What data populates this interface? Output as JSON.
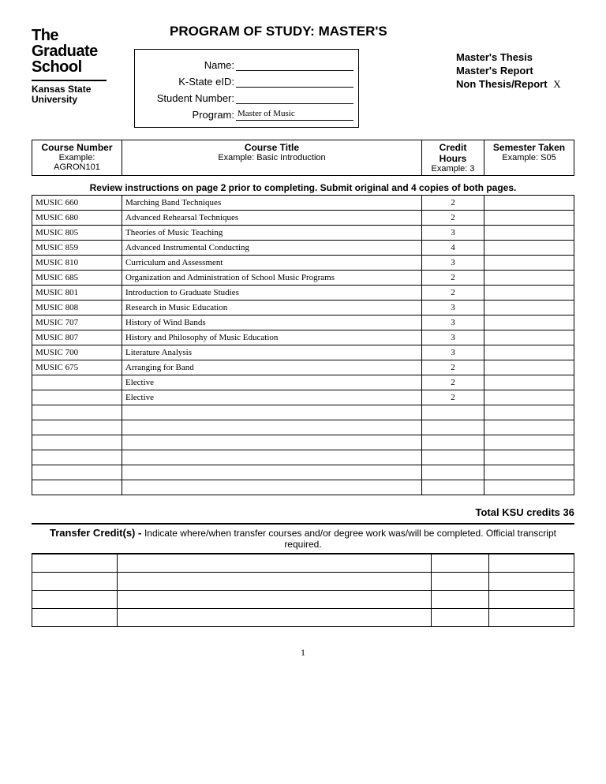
{
  "logo": {
    "line1": "The",
    "line2": "Graduate",
    "line3": "School",
    "sub1": "Kansas State",
    "sub2": "University"
  },
  "title": "PROGRAM OF STUDY: MASTER'S",
  "options": {
    "thesis": {
      "label": "Master's Thesis",
      "mark": ""
    },
    "report": {
      "label": "Master's Report",
      "mark": ""
    },
    "nonthesis": {
      "label": "Non Thesis/Report",
      "mark": "X"
    }
  },
  "info": {
    "name": {
      "label": "Name:",
      "value": ""
    },
    "eid": {
      "label": "K-State eID:",
      "value": ""
    },
    "studentnum": {
      "label": "Student Number:",
      "value": ""
    },
    "program": {
      "label": "Program:",
      "value": "Master of Music"
    }
  },
  "headers": {
    "courseNum": "Course Number",
    "courseNumEx": "Example: AGRON101",
    "courseTitle": "Course Title",
    "courseTitleEx": "Example: Basic Introduction",
    "credit": "Credit Hours",
    "creditEx": "Example: 3",
    "semester": "Semester Taken",
    "semesterEx": "Example: S05"
  },
  "instruction": "Review instructions on page 2 prior to completing. Submit original and 4 copies of both pages.",
  "courses": [
    {
      "num": "MUSIC 660",
      "title": "Marching Band Techniques",
      "credit": "2",
      "sem": ""
    },
    {
      "num": "MUSIC 680",
      "title": "Advanced Rehearsal Techniques",
      "credit": "2",
      "sem": ""
    },
    {
      "num": "MUSIC 805",
      "title": "Theories of Music Teaching",
      "credit": "3",
      "sem": ""
    },
    {
      "num": "MUSIC 859",
      "title": "Advanced Instrumental Conducting",
      "credit": "4",
      "sem": ""
    },
    {
      "num": "MUSIC 810",
      "title": "Curriculum and Assessment",
      "credit": "3",
      "sem": ""
    },
    {
      "num": "MUSIC 685",
      "title": "Organization and Administration of School Music Programs",
      "credit": "2",
      "sem": ""
    },
    {
      "num": "MUSIC 801",
      "title": "Introduction to Graduate Studies",
      "credit": "2",
      "sem": ""
    },
    {
      "num": "MUSIC 808",
      "title": "Research in Music Education",
      "credit": "3",
      "sem": ""
    },
    {
      "num": "MUSIC 707",
      "title": "History of Wind Bands",
      "credit": "3",
      "sem": ""
    },
    {
      "num": "MUSIC 807",
      "title": "History and Philosophy of Music Education",
      "credit": "3",
      "sem": ""
    },
    {
      "num": "MUSIC 700",
      "title": "Literature Analysis",
      "credit": "3",
      "sem": ""
    },
    {
      "num": "MUSIC 675",
      "title": "Arranging for Band",
      "credit": "2",
      "sem": ""
    },
    {
      "num": "",
      "title": "Elective",
      "credit": "2",
      "sem": ""
    },
    {
      "num": "",
      "title": "Elective",
      "credit": "2",
      "sem": ""
    },
    {
      "num": "",
      "title": "",
      "credit": "",
      "sem": ""
    },
    {
      "num": "",
      "title": "",
      "credit": "",
      "sem": ""
    },
    {
      "num": "",
      "title": "",
      "credit": "",
      "sem": ""
    },
    {
      "num": "",
      "title": "",
      "credit": "",
      "sem": ""
    },
    {
      "num": "",
      "title": "",
      "credit": "",
      "sem": ""
    },
    {
      "num": "",
      "title": "",
      "credit": "",
      "sem": ""
    }
  ],
  "total": {
    "label": "Total KSU credits",
    "value": "36"
  },
  "transfer": {
    "label": "Transfer Credit(s) - ",
    "text": "Indicate where/when transfer courses and/or degree work was/will be completed.  Official transcript required."
  },
  "transferRows": 4,
  "pageNumber": "1"
}
